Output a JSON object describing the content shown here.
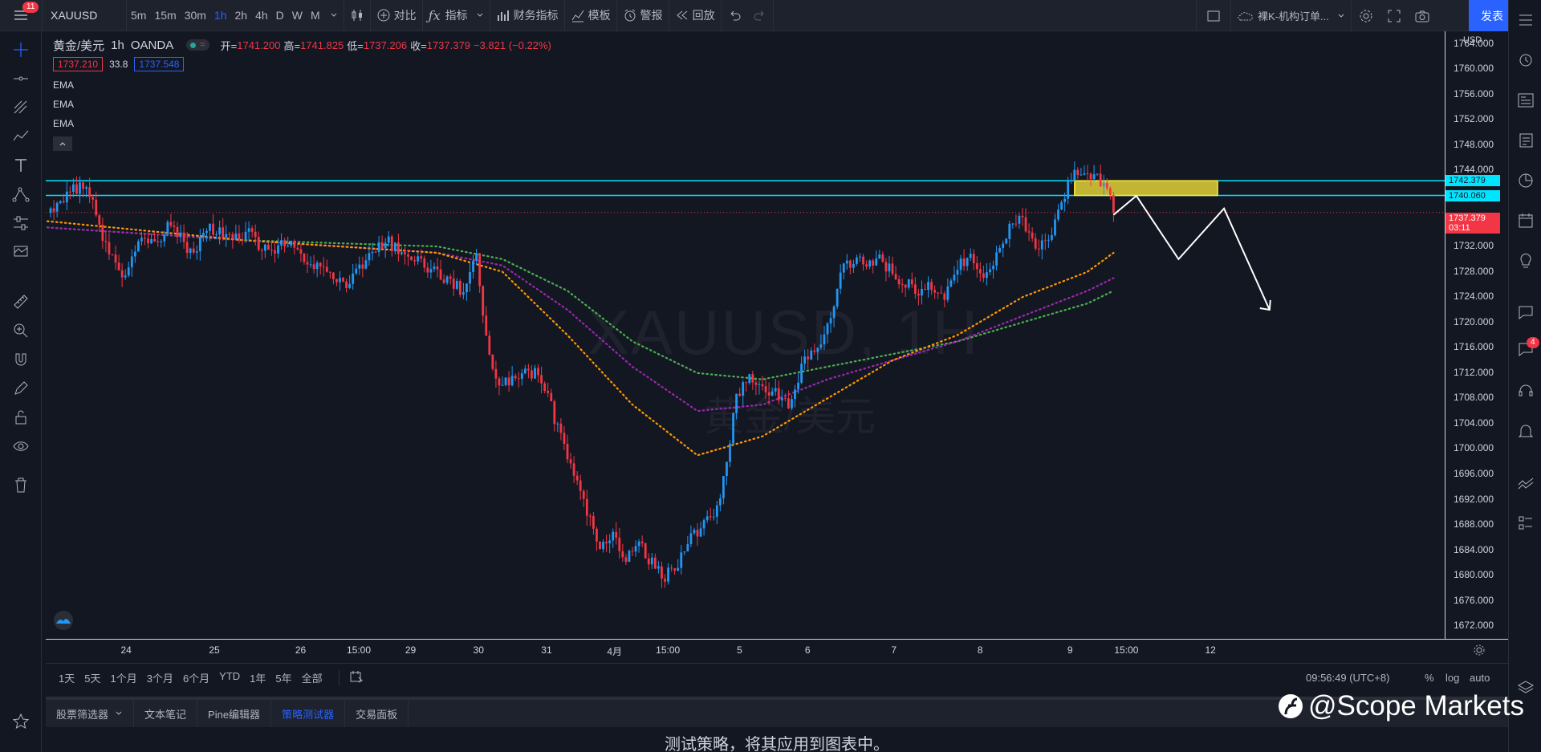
{
  "toolbar": {
    "notification_count": "11",
    "symbol": "XAUUSD",
    "intervals": [
      "5m",
      "15m",
      "30m",
      "1h",
      "2h",
      "4h",
      "D",
      "W",
      "M"
    ],
    "active_interval": "1h",
    "compare_label": "对比",
    "indicators_label": "指标",
    "financials_label": "财务指标",
    "templates_label": "模板",
    "alert_label": "警报",
    "replay_label": "回放",
    "layout_name": "裸K-机构订单...",
    "publish_label": "发表"
  },
  "legend": {
    "title": "黄金/美元",
    "timeframe": "1h",
    "source": "OANDA",
    "open_key": "开=",
    "open": "1741.200",
    "high_key": "高=",
    "high": "1741.825",
    "low_key": "低=",
    "low": "1737.206",
    "close_key": "收=",
    "close": "1737.379",
    "change": "−3.821 (−0.22%)",
    "bid": "1737.210",
    "spread": "33.8",
    "ask": "1737.548",
    "ema_labels": [
      "EMA",
      "EMA",
      "EMA"
    ]
  },
  "watermark": {
    "symbol": "XAUUSD, 1H",
    "name": "黄金/美元"
  },
  "price_axis": {
    "currency": "USD",
    "ticks": [
      "1764.000",
      "1760.000",
      "1756.000",
      "1752.000",
      "1748.000",
      "1744.000",
      "1740.000",
      "1736.000",
      "1732.000",
      "1728.000",
      "1724.000",
      "1720.000",
      "1716.000",
      "1712.000",
      "1708.000",
      "1704.000",
      "1700.000",
      "1696.000",
      "1692.000",
      "1688.000",
      "1684.000",
      "1680.000",
      "1676.000",
      "1672.000"
    ],
    "line1_label": "1742.379",
    "line2_label": "1740.060",
    "last_price": "1737.379",
    "countdown": "03:11"
  },
  "time_axis": {
    "ticks": [
      "24",
      "25",
      "26",
      "15:00",
      "29",
      "30",
      "31",
      "4月",
      "15:00",
      "5",
      "6",
      "7",
      "8",
      "9",
      "15:00",
      "12"
    ]
  },
  "range_bar": {
    "ranges": [
      "1天",
      "5天",
      "1个月",
      "3个月",
      "6个月",
      "YTD",
      "1年",
      "5年",
      "全部"
    ],
    "clock": "09:56:49 (UTC+8)",
    "percent": "%",
    "log": "log",
    "auto": "auto"
  },
  "panel": {
    "tabs": [
      "股票筛选器",
      "文本笔记",
      "Pine编辑器",
      "策略测试器",
      "交易面板"
    ],
    "active_tab": "策略测试器",
    "message": "测试策略，将其应用到图表中。"
  },
  "right_toolbar": {
    "chat_badge": "4"
  },
  "brand": {
    "text": "@Scope Markets"
  },
  "colors": {
    "background": "#131722",
    "up": "#2196f3",
    "down": "#f23645",
    "ema_fast": "#ff9800",
    "ema_mid": "#9c27b0",
    "ema_slow": "#4caf50",
    "level_lines": "#00e5ff",
    "zone": "#ffeb3b",
    "accent": "#2962ff"
  },
  "chart_data": {
    "type": "candlestick",
    "symbol": "XAUUSD",
    "interval": "1h",
    "ylim": [
      1670,
      1766
    ],
    "horizontal_levels": [
      1742.379,
      1740.06
    ],
    "last_price": 1737.379,
    "price_path": [
      [
        0,
        1737
      ],
      [
        4,
        1739
      ],
      [
        8,
        1741
      ],
      [
        12,
        1742
      ],
      [
        16,
        1735
      ],
      [
        20,
        1730
      ],
      [
        24,
        1727
      ],
      [
        28,
        1733
      ],
      [
        33,
        1732
      ],
      [
        38,
        1736
      ],
      [
        44,
        1731
      ],
      [
        50,
        1735
      ],
      [
        56,
        1733
      ],
      [
        62,
        1734
      ],
      [
        68,
        1731
      ],
      [
        74,
        1733
      ],
      [
        80,
        1729
      ],
      [
        86,
        1728
      ],
      [
        92,
        1726
      ],
      [
        98,
        1730
      ],
      [
        104,
        1733
      ],
      [
        110,
        1731
      ],
      [
        116,
        1729
      ],
      [
        122,
        1727
      ],
      [
        128,
        1725
      ],
      [
        132,
        1730
      ],
      [
        136,
        1714
      ],
      [
        140,
        1710
      ],
      [
        146,
        1712
      ],
      [
        150,
        1712
      ],
      [
        154,
        1708
      ],
      [
        158,
        1702
      ],
      [
        162,
        1696
      ],
      [
        166,
        1690
      ],
      [
        170,
        1684
      ],
      [
        174,
        1686
      ],
      [
        178,
        1683
      ],
      [
        182,
        1685
      ],
      [
        186,
        1682
      ],
      [
        190,
        1680
      ],
      [
        194,
        1682
      ],
      [
        198,
        1686
      ],
      [
        202,
        1688
      ],
      [
        206,
        1690
      ],
      [
        209,
        1698
      ],
      [
        212,
        1708
      ],
      [
        216,
        1712
      ],
      [
        220,
        1710
      ],
      [
        224,
        1709
      ],
      [
        228,
        1707
      ],
      [
        232,
        1713
      ],
      [
        236,
        1716
      ],
      [
        240,
        1719
      ],
      [
        244,
        1728
      ],
      [
        248,
        1730
      ],
      [
        252,
        1729
      ],
      [
        256,
        1730
      ],
      [
        260,
        1728
      ],
      [
        264,
        1726
      ],
      [
        268,
        1725
      ],
      [
        272,
        1726
      ],
      [
        276,
        1724
      ],
      [
        280,
        1729
      ],
      [
        284,
        1730
      ],
      [
        288,
        1728
      ],
      [
        292,
        1730
      ],
      [
        296,
        1735
      ],
      [
        300,
        1736
      ],
      [
        304,
        1731
      ],
      [
        308,
        1733
      ],
      [
        312,
        1738
      ],
      [
        315,
        1743
      ],
      [
        318,
        1744
      ],
      [
        322,
        1743
      ],
      [
        326,
        1742
      ],
      [
        328,
        1737
      ]
    ],
    "ema_fast": [
      [
        0,
        1736
      ],
      [
        60,
        1733
      ],
      [
        120,
        1731
      ],
      [
        140,
        1728
      ],
      [
        160,
        1718
      ],
      [
        180,
        1707
      ],
      [
        200,
        1699
      ],
      [
        220,
        1702
      ],
      [
        240,
        1708
      ],
      [
        260,
        1714
      ],
      [
        280,
        1718
      ],
      [
        300,
        1724
      ],
      [
        320,
        1728
      ],
      [
        328,
        1731
      ]
    ],
    "ema_mid": [
      [
        0,
        1735
      ],
      [
        60,
        1733
      ],
      [
        120,
        1731
      ],
      [
        140,
        1729
      ],
      [
        160,
        1722
      ],
      [
        180,
        1713
      ],
      [
        200,
        1706
      ],
      [
        220,
        1707
      ],
      [
        240,
        1711
      ],
      [
        260,
        1714
      ],
      [
        280,
        1717
      ],
      [
        300,
        1721
      ],
      [
        320,
        1725
      ],
      [
        328,
        1727
      ]
    ],
    "ema_slow": [
      [
        0,
        1735
      ],
      [
        60,
        1733
      ],
      [
        120,
        1732
      ],
      [
        140,
        1730
      ],
      [
        160,
        1725
      ],
      [
        180,
        1717
      ],
      [
        200,
        1712
      ],
      [
        220,
        1711
      ],
      [
        240,
        1713
      ],
      [
        260,
        1715
      ],
      [
        280,
        1717
      ],
      [
        300,
        1720
      ],
      [
        320,
        1723
      ],
      [
        328,
        1725
      ]
    ],
    "projection": [
      [
        328,
        1737
      ],
      [
        335,
        1740
      ],
      [
        348,
        1730
      ],
      [
        362,
        1738
      ],
      [
        376,
        1722
      ]
    ]
  }
}
